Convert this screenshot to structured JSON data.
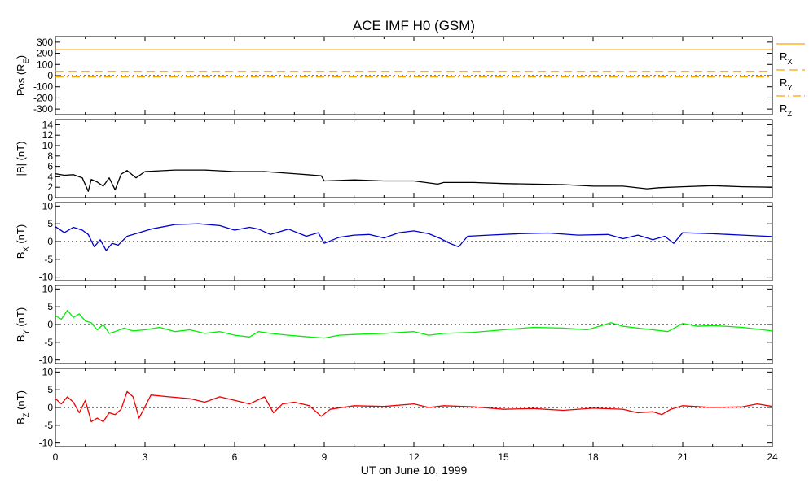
{
  "title": "ACE IMF H0 (GSM)",
  "chart_data": [
    {
      "type": "line",
      "id": "pos",
      "ylabel": "Pos (R_E)",
      "ylabel_main": "Pos (R",
      "ylabel_sub": "E",
      "ylabel_tail": ")",
      "ylim": [
        -350,
        350
      ],
      "yticks": [
        -300,
        -200,
        -100,
        0,
        100,
        200,
        300
      ],
      "zero_line": true,
      "series": [
        {
          "name": "R_X",
          "name_main": "R",
          "name_sub": "X",
          "color": "#ffa500",
          "dash": "solid",
          "x": [
            0,
            24
          ],
          "y": [
            232,
            232
          ]
        },
        {
          "name": "R_Y",
          "name_main": "R",
          "name_sub": "Y",
          "color": "#ffa500",
          "dash": "dashed",
          "x": [
            0,
            24
          ],
          "y": [
            38,
            38
          ]
        },
        {
          "name": "R_Z",
          "name_main": "R",
          "name_sub": "Z",
          "color": "#ffa500",
          "dash": "dashdot",
          "x": [
            0,
            24
          ],
          "y": [
            -12,
            -12
          ]
        }
      ]
    },
    {
      "type": "line",
      "id": "bmag",
      "ylabel": "|B| (nT)",
      "ylabel_main": "|B| (nT)",
      "ylabel_sub": "",
      "ylabel_tail": "",
      "ylim": [
        0,
        15
      ],
      "yticks": [
        0,
        2,
        4,
        6,
        8,
        10,
        12,
        14
      ],
      "zero_line": false,
      "series": [
        {
          "name": "|B|",
          "color": "#000000",
          "x": [
            0,
            0.3,
            0.6,
            0.9,
            1.0,
            1.1,
            1.2,
            1.4,
            1.6,
            1.8,
            2.0,
            2.2,
            2.4,
            2.7,
            3.0,
            4.0,
            5.0,
            6.0,
            7.0,
            8.0,
            8.9,
            9.0,
            10.0,
            11.0,
            12.0,
            12.8,
            13.0,
            14.0,
            15.0,
            16.0,
            17.0,
            18.0,
            19.0,
            19.8,
            20.2,
            21.0,
            22.0,
            23.0,
            24.0
          ],
          "y": [
            4.6,
            4.3,
            4.4,
            3.8,
            2.5,
            1.2,
            3.5,
            3.0,
            2.2,
            3.8,
            1.5,
            4.5,
            5.2,
            3.8,
            5.0,
            5.3,
            5.3,
            5.0,
            5.0,
            4.6,
            4.2,
            3.2,
            3.4,
            3.2,
            3.2,
            2.6,
            2.9,
            2.9,
            2.7,
            2.6,
            2.5,
            2.2,
            2.2,
            1.7,
            1.9,
            2.1,
            2.3,
            2.1,
            2.0
          ]
        }
      ]
    },
    {
      "type": "line",
      "id": "bx",
      "ylabel": "B_X (nT)",
      "ylabel_main": "B",
      "ylabel_sub": "X",
      "ylabel_tail": " (nT)",
      "ylim": [
        -11,
        11
      ],
      "yticks": [
        -10,
        -5,
        0,
        5,
        10
      ],
      "zero_line": true,
      "series": [
        {
          "name": "B_X",
          "color": "#0000cc",
          "x": [
            0,
            0.3,
            0.6,
            0.9,
            1.1,
            1.3,
            1.5,
            1.7,
            1.9,
            2.1,
            2.4,
            2.8,
            3.2,
            4.0,
            4.8,
            5.5,
            6.0,
            6.5,
            6.8,
            7.2,
            7.8,
            8.4,
            8.8,
            9.0,
            9.5,
            10.0,
            10.5,
            11.0,
            11.5,
            12.0,
            12.5,
            12.9,
            13.2,
            13.5,
            13.8,
            14.5,
            15.5,
            16.5,
            17.5,
            18.5,
            19.0,
            19.5,
            20.0,
            20.4,
            20.7,
            21.0,
            22.0,
            23.0,
            24.0
          ],
          "y": [
            4.2,
            2.5,
            4.0,
            3.2,
            2.0,
            -1.5,
            0.5,
            -2.5,
            -0.5,
            -1.0,
            1.5,
            2.5,
            3.5,
            4.8,
            5.0,
            4.5,
            3.2,
            4.0,
            3.5,
            2.0,
            3.5,
            1.5,
            2.5,
            -0.5,
            1.2,
            1.8,
            2.0,
            1.0,
            2.5,
            3.0,
            2.2,
            0.8,
            -0.5,
            -1.5,
            1.5,
            1.8,
            2.2,
            2.4,
            1.8,
            2.0,
            0.8,
            1.8,
            0.5,
            1.5,
            -0.5,
            2.5,
            2.2,
            1.8,
            1.4
          ]
        }
      ]
    },
    {
      "type": "line",
      "id": "by",
      "ylabel": "B_Y (nT)",
      "ylabel_main": "B",
      "ylabel_sub": "Y",
      "ylabel_tail": " (nT)",
      "ylim": [
        -11,
        11
      ],
      "yticks": [
        -10,
        -5,
        0,
        5,
        10
      ],
      "zero_line": true,
      "series": [
        {
          "name": "B_Y",
          "color": "#00ee00",
          "x": [
            0,
            0.2,
            0.4,
            0.6,
            0.8,
            1.0,
            1.2,
            1.4,
            1.6,
            1.8,
            2.0,
            2.3,
            2.6,
            3.0,
            3.5,
            4.0,
            4.5,
            5.0,
            5.5,
            6.0,
            6.5,
            6.8,
            7.2,
            7.8,
            8.5,
            9.0,
            9.5,
            10.0,
            11.0,
            12.0,
            12.5,
            13.0,
            14.0,
            15.0,
            16.0,
            17.0,
            17.8,
            18.2,
            18.6,
            19.0,
            19.5,
            20.0,
            20.5,
            21.0,
            21.5,
            22.0,
            23.0,
            24.0
          ],
          "y": [
            2.5,
            1.5,
            4.0,
            2.0,
            3.0,
            1.0,
            0.5,
            -1.5,
            0.0,
            -2.5,
            -2.0,
            -1.0,
            -1.8,
            -1.5,
            -0.8,
            -2.0,
            -1.5,
            -2.5,
            -2.0,
            -3.0,
            -3.5,
            -2.0,
            -2.5,
            -3.0,
            -3.5,
            -3.8,
            -3.0,
            -2.8,
            -2.5,
            -2.0,
            -3.0,
            -2.5,
            -2.2,
            -1.5,
            -0.8,
            -1.0,
            -1.5,
            -0.5,
            0.5,
            -0.5,
            -1.0,
            -1.5,
            -2.0,
            0.3,
            -0.5,
            -0.3,
            -0.8,
            -1.8
          ]
        }
      ]
    },
    {
      "type": "line",
      "id": "bz",
      "ylabel": "B_Z (nT)",
      "ylabel_main": "B",
      "ylabel_sub": "Z",
      "ylabel_tail": " (nT)",
      "ylim": [
        -11,
        11
      ],
      "yticks": [
        -10,
        -5,
        0,
        5,
        10
      ],
      "zero_line": true,
      "series": [
        {
          "name": "B_Z",
          "color": "#ee0000",
          "x": [
            0,
            0.2,
            0.4,
            0.6,
            0.8,
            1.0,
            1.2,
            1.4,
            1.6,
            1.8,
            2.0,
            2.2,
            2.4,
            2.6,
            2.8,
            3.2,
            3.8,
            4.5,
            5.0,
            5.5,
            6.0,
            6.5,
            7.0,
            7.3,
            7.6,
            8.0,
            8.5,
            8.9,
            9.2,
            9.6,
            10.0,
            11.0,
            12.0,
            12.5,
            13.0,
            14.0,
            15.0,
            16.0,
            17.0,
            18.0,
            19.0,
            19.5,
            20.0,
            20.3,
            20.6,
            21.0,
            22.0,
            23.0,
            23.5,
            24.0
          ],
          "y": [
            2.5,
            1.0,
            3.0,
            1.5,
            -1.5,
            2.0,
            -4.0,
            -3.0,
            -4.0,
            -1.5,
            -2.0,
            -0.5,
            4.5,
            3.0,
            -3.0,
            3.5,
            3.0,
            2.5,
            1.5,
            3.0,
            2.0,
            1.0,
            3.0,
            -1.5,
            1.0,
            1.5,
            0.5,
            -2.5,
            -0.5,
            0.0,
            0.5,
            0.3,
            1.0,
            0.0,
            0.5,
            0.2,
            -0.5,
            -0.3,
            -0.8,
            -0.2,
            -0.5,
            -1.5,
            -1.2,
            -2.0,
            -0.5,
            0.5,
            0.0,
            0.2,
            1.0,
            0.3
          ]
        }
      ]
    }
  ],
  "x_axis": {
    "xlim": [
      0,
      24
    ],
    "ticks": [
      0,
      3,
      6,
      9,
      12,
      15,
      18,
      21,
      24
    ],
    "tick_labels": [
      "0",
      "3",
      "6",
      "9",
      "12",
      "15",
      "18",
      "21",
      "24"
    ],
    "label": "UT on June 10, 1999"
  }
}
